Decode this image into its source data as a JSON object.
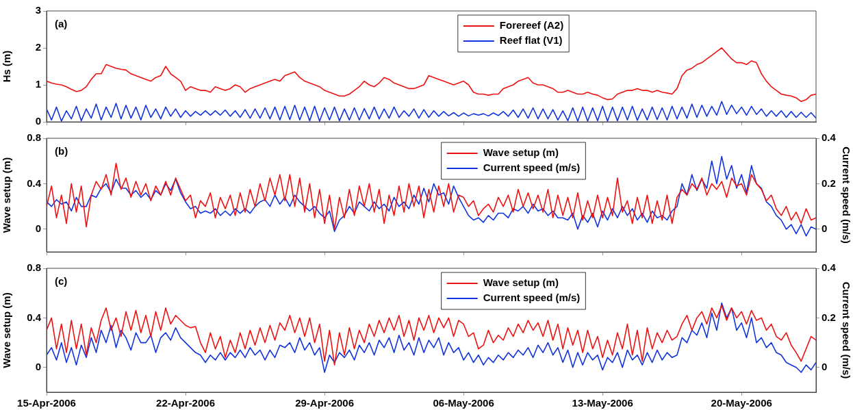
{
  "chart_data": [
    {
      "type": "line",
      "annotations": [
        "(a)"
      ],
      "ylabel": "Hs (m)",
      "legend": "top",
      "tick_labels": "y",
      "xlim": [
        "2006-04-15",
        "2006-05-23T18:00"
      ],
      "ylim": [
        0,
        3
      ],
      "yticks": [
        0,
        1,
        2,
        3
      ],
      "xticks": [
        {
          "value": "2006-04-15",
          "label": null
        },
        {
          "value": "2006-04-22",
          "label": null
        },
        {
          "value": "2006-04-29",
          "label": null
        },
        {
          "value": "2006-05-06",
          "label": null
        },
        {
          "value": "2006-05-13",
          "label": null
        },
        {
          "value": "2006-05-20",
          "label": null
        }
      ],
      "x": [
        "2006-04-15",
        "2006-04-15T06:00",
        "2006-04-15T12:00",
        "2006-04-15T18:00",
        "2006-04-16",
        "2006-04-16T06:00",
        "2006-04-16T12:00",
        "2006-04-16T18:00",
        "2006-04-17",
        "2006-04-17T06:00",
        "2006-04-17T12:00",
        "2006-04-17T18:00",
        "2006-04-18",
        "2006-04-18T06:00",
        "2006-04-18T12:00",
        "2006-04-18T18:00",
        "2006-04-19",
        "2006-04-19T06:00",
        "2006-04-19T12:00",
        "2006-04-19T18:00",
        "2006-04-20",
        "2006-04-20T06:00",
        "2006-04-20T12:00",
        "2006-04-20T18:00",
        "2006-04-21",
        "2006-04-21T06:00",
        "2006-04-21T12:00",
        "2006-04-21T18:00",
        "2006-04-22",
        "2006-04-22T06:00",
        "2006-04-22T12:00",
        "2006-04-22T18:00",
        "2006-04-23",
        "2006-04-23T06:00",
        "2006-04-23T12:00",
        "2006-04-23T18:00",
        "2006-04-24",
        "2006-04-24T06:00",
        "2006-04-24T12:00",
        "2006-04-24T18:00",
        "2006-04-25",
        "2006-04-25T06:00",
        "2006-04-25T12:00",
        "2006-04-25T18:00",
        "2006-04-26",
        "2006-04-26T06:00",
        "2006-04-26T12:00",
        "2006-04-26T18:00",
        "2006-04-27",
        "2006-04-27T06:00",
        "2006-04-27T12:00",
        "2006-04-27T18:00",
        "2006-04-28",
        "2006-04-28T06:00",
        "2006-04-28T12:00",
        "2006-04-28T18:00",
        "2006-04-29",
        "2006-04-29T06:00",
        "2006-04-29T12:00",
        "2006-04-29T18:00",
        "2006-04-30",
        "2006-04-30T06:00",
        "2006-04-30T12:00",
        "2006-04-30T18:00",
        "2006-05-01",
        "2006-05-01T06:00",
        "2006-05-01T12:00",
        "2006-05-01T18:00",
        "2006-05-02",
        "2006-05-02T06:00",
        "2006-05-02T12:00",
        "2006-05-02T18:00",
        "2006-05-03",
        "2006-05-03T06:00",
        "2006-05-03T12:00",
        "2006-05-03T18:00",
        "2006-05-04",
        "2006-05-04T06:00",
        "2006-05-04T12:00",
        "2006-05-04T18:00",
        "2006-05-05",
        "2006-05-05T06:00",
        "2006-05-05T12:00",
        "2006-05-05T18:00",
        "2006-05-06",
        "2006-05-06T06:00",
        "2006-05-06T12:00",
        "2006-05-06T18:00",
        "2006-05-07",
        "2006-05-07T06:00",
        "2006-05-07T12:00",
        "2006-05-07T18:00",
        "2006-05-08",
        "2006-05-08T06:00",
        "2006-05-08T12:00",
        "2006-05-08T18:00",
        "2006-05-09",
        "2006-05-09T06:00",
        "2006-05-09T12:00",
        "2006-05-09T18:00",
        "2006-05-10",
        "2006-05-10T06:00",
        "2006-05-10T12:00",
        "2006-05-10T18:00",
        "2006-05-11",
        "2006-05-11T06:00",
        "2006-05-11T12:00",
        "2006-05-11T18:00",
        "2006-05-12",
        "2006-05-12T06:00",
        "2006-05-12T12:00",
        "2006-05-12T18:00",
        "2006-05-13",
        "2006-05-13T06:00",
        "2006-05-13T12:00",
        "2006-05-13T18:00",
        "2006-05-14",
        "2006-05-14T06:00",
        "2006-05-14T12:00",
        "2006-05-14T18:00",
        "2006-05-15",
        "2006-05-15T06:00",
        "2006-05-15T12:00",
        "2006-05-15T18:00",
        "2006-05-16",
        "2006-05-16T06:00",
        "2006-05-16T12:00",
        "2006-05-16T18:00",
        "2006-05-17",
        "2006-05-17T06:00",
        "2006-05-17T12:00",
        "2006-05-17T18:00",
        "2006-05-18",
        "2006-05-18T06:00",
        "2006-05-18T12:00",
        "2006-05-18T18:00",
        "2006-05-19",
        "2006-05-19T06:00",
        "2006-05-19T12:00",
        "2006-05-19T18:00",
        "2006-05-20",
        "2006-05-20T06:00",
        "2006-05-20T12:00",
        "2006-05-20T18:00",
        "2006-05-21",
        "2006-05-21T06:00",
        "2006-05-21T12:00",
        "2006-05-21T18:00",
        "2006-05-22",
        "2006-05-22T06:00",
        "2006-05-22T12:00",
        "2006-05-22T18:00",
        "2006-05-23",
        "2006-05-23T06:00",
        "2006-05-23T12:00",
        "2006-05-23T18:00"
      ],
      "series": [
        {
          "name": "Forereef (A2)",
          "color": "#ee1111",
          "values": [
            1.1,
            1.05,
            1.02,
            1.0,
            0.95,
            0.88,
            0.82,
            0.85,
            0.95,
            1.15,
            1.3,
            1.3,
            1.55,
            1.5,
            1.45,
            1.42,
            1.4,
            1.3,
            1.25,
            1.2,
            1.15,
            1.1,
            1.2,
            1.25,
            1.5,
            1.3,
            1.2,
            1.1,
            0.85,
            0.95,
            0.9,
            0.85,
            0.85,
            0.8,
            0.95,
            0.9,
            0.85,
            0.9,
            1.0,
            0.95,
            0.8,
            0.9,
            0.95,
            1.0,
            1.05,
            1.1,
            1.15,
            1.1,
            1.25,
            1.3,
            1.35,
            1.2,
            1.1,
            1.05,
            1.0,
            0.95,
            0.85,
            0.8,
            0.75,
            0.7,
            0.7,
            0.75,
            0.85,
            0.95,
            1.1,
            1.0,
            0.95,
            1.05,
            1.2,
            1.15,
            1.05,
            1.0,
            0.95,
            0.9,
            0.9,
            0.95,
            1.0,
            1.25,
            1.2,
            1.15,
            1.1,
            1.05,
            1.0,
            1.05,
            1.1,
            1.0,
            0.8,
            0.75,
            0.75,
            0.72,
            0.75,
            0.75,
            0.9,
            0.95,
            1.0,
            1.1,
            1.15,
            1.2,
            1.05,
            1.0,
            1.0,
            0.95,
            0.9,
            0.8,
            0.8,
            0.85,
            0.8,
            0.75,
            0.75,
            0.8,
            0.75,
            0.72,
            0.65,
            0.6,
            0.62,
            0.75,
            0.8,
            0.85,
            0.85,
            0.9,
            0.85,
            0.85,
            0.8,
            0.85,
            0.8,
            0.78,
            0.75,
            0.9,
            1.25,
            1.4,
            1.45,
            1.55,
            1.6,
            1.7,
            1.8,
            1.9,
            2.0,
            1.85,
            1.7,
            1.6,
            1.6,
            1.55,
            1.65,
            1.6,
            1.3,
            1.1,
            0.95,
            0.85,
            0.75,
            0.72,
            0.7,
            0.65,
            0.55,
            0.6,
            0.72,
            0.75
          ]
        },
        {
          "name": "Reef flat (V1)",
          "color": "#1133dd",
          "values": [
            0.35,
            0.05,
            0.4,
            0.02,
            0.3,
            0.08,
            0.42,
            0.03,
            0.35,
            0.1,
            0.48,
            0.05,
            0.4,
            0.12,
            0.5,
            0.08,
            0.45,
            0.1,
            0.4,
            0.05,
            0.45,
            0.12,
            0.35,
            0.08,
            0.4,
            0.15,
            0.35,
            0.12,
            0.3,
            0.15,
            0.28,
            0.18,
            0.3,
            0.18,
            0.3,
            0.18,
            0.32,
            0.15,
            0.3,
            0.12,
            0.33,
            0.1,
            0.35,
            0.1,
            0.38,
            0.08,
            0.4,
            0.05,
            0.42,
            0.06,
            0.45,
            0.05,
            0.4,
            0.03,
            0.42,
            0.02,
            0.38,
            0.05,
            0.4,
            0.03,
            0.35,
            0.05,
            0.38,
            0.05,
            0.36,
            0.08,
            0.4,
            0.08,
            0.35,
            0.1,
            0.4,
            0.12,
            0.3,
            0.15,
            0.35,
            0.1,
            0.33,
            0.12,
            0.3,
            0.15,
            0.28,
            0.16,
            0.25,
            0.15,
            0.24,
            0.16,
            0.22,
            0.18,
            0.22,
            0.16,
            0.24,
            0.17,
            0.28,
            0.15,
            0.32,
            0.12,
            0.35,
            0.1,
            0.38,
            0.08,
            0.35,
            0.08,
            0.33,
            0.05,
            0.3,
            0.03,
            0.38,
            0.02,
            0.4,
            0.02,
            0.38,
            0.03,
            0.42,
            0.02,
            0.4,
            0.03,
            0.4,
            0.05,
            0.42,
            0.04,
            0.35,
            0.05,
            0.4,
            0.06,
            0.38,
            0.05,
            0.42,
            0.08,
            0.4,
            0.1,
            0.48,
            0.12,
            0.45,
            0.15,
            0.42,
            0.18,
            0.55,
            0.2,
            0.45,
            0.22,
            0.4,
            0.18,
            0.42,
            0.2,
            0.35,
            0.15,
            0.3,
            0.15,
            0.3,
            0.12,
            0.28,
            0.12,
            0.26,
            0.12,
            0.25,
            0.1
          ]
        }
      ]
    },
    {
      "type": "line",
      "annotations": [
        "(b)"
      ],
      "ylabel": "Wave setup (m)",
      "y2label": "Current speed (m/s)",
      "legend": "top",
      "tick_labels": "y",
      "xlim": [
        "2006-04-15",
        "2006-05-23T18:00"
      ],
      "ylim": [
        -0.2,
        0.8
      ],
      "yticks": [
        0,
        0.4,
        0.8
      ],
      "y2lim": [
        -0.1,
        0.4
      ],
      "y2ticks": [
        0,
        0.2,
        0.4
      ],
      "xticks": [
        {
          "value": "2006-04-15",
          "label": null
        },
        {
          "value": "2006-04-22",
          "label": null
        },
        {
          "value": "2006-04-29",
          "label": null
        },
        {
          "value": "2006-05-06",
          "label": null
        },
        {
          "value": "2006-05-13",
          "label": null
        },
        {
          "value": "2006-05-20",
          "label": null
        }
      ],
      "x": [
        "2006-04-15",
        "2006-04-15T06:00",
        "2006-04-15T12:00",
        "2006-04-15T18:00",
        "2006-04-16",
        "2006-04-16T06:00",
        "2006-04-16T12:00",
        "2006-04-16T18:00",
        "2006-04-17",
        "2006-04-17T06:00",
        "2006-04-17T12:00",
        "2006-04-17T18:00",
        "2006-04-18",
        "2006-04-18T06:00",
        "2006-04-18T12:00",
        "2006-04-18T18:00",
        "2006-04-19",
        "2006-04-19T06:00",
        "2006-04-19T12:00",
        "2006-04-19T18:00",
        "2006-04-20",
        "2006-04-20T06:00",
        "2006-04-20T12:00",
        "2006-04-20T18:00",
        "2006-04-21",
        "2006-04-21T06:00",
        "2006-04-21T12:00",
        "2006-04-21T18:00",
        "2006-04-22",
        "2006-04-22T06:00",
        "2006-04-22T12:00",
        "2006-04-22T18:00",
        "2006-04-23",
        "2006-04-23T06:00",
        "2006-04-23T12:00",
        "2006-04-23T18:00",
        "2006-04-24",
        "2006-04-24T06:00",
        "2006-04-24T12:00",
        "2006-04-24T18:00",
        "2006-04-25",
        "2006-04-25T06:00",
        "2006-04-25T12:00",
        "2006-04-25T18:00",
        "2006-04-26",
        "2006-04-26T06:00",
        "2006-04-26T12:00",
        "2006-04-26T18:00",
        "2006-04-27",
        "2006-04-27T06:00",
        "2006-04-27T12:00",
        "2006-04-27T18:00",
        "2006-04-28",
        "2006-04-28T06:00",
        "2006-04-28T12:00",
        "2006-04-28T18:00",
        "2006-04-29",
        "2006-04-29T06:00",
        "2006-04-29T12:00",
        "2006-04-29T18:00",
        "2006-04-30",
        "2006-04-30T06:00",
        "2006-04-30T12:00",
        "2006-04-30T18:00",
        "2006-05-01",
        "2006-05-01T06:00",
        "2006-05-01T12:00",
        "2006-05-01T18:00",
        "2006-05-02",
        "2006-05-02T06:00",
        "2006-05-02T12:00",
        "2006-05-02T18:00",
        "2006-05-03",
        "2006-05-03T06:00",
        "2006-05-03T12:00",
        "2006-05-03T18:00",
        "2006-05-04",
        "2006-05-04T06:00",
        "2006-05-04T12:00",
        "2006-05-04T18:00",
        "2006-05-05",
        "2006-05-05T06:00",
        "2006-05-05T12:00",
        "2006-05-05T18:00",
        "2006-05-06",
        "2006-05-06T06:00",
        "2006-05-06T12:00",
        "2006-05-06T18:00",
        "2006-05-07",
        "2006-05-07T06:00",
        "2006-05-07T12:00",
        "2006-05-07T18:00",
        "2006-05-08",
        "2006-05-08T06:00",
        "2006-05-08T12:00",
        "2006-05-08T18:00",
        "2006-05-09",
        "2006-05-09T06:00",
        "2006-05-09T12:00",
        "2006-05-09T18:00",
        "2006-05-10",
        "2006-05-10T06:00",
        "2006-05-10T12:00",
        "2006-05-10T18:00",
        "2006-05-11",
        "2006-05-11T06:00",
        "2006-05-11T12:00",
        "2006-05-11T18:00",
        "2006-05-12",
        "2006-05-12T06:00",
        "2006-05-12T12:00",
        "2006-05-12T18:00",
        "2006-05-13",
        "2006-05-13T06:00",
        "2006-05-13T12:00",
        "2006-05-13T18:00",
        "2006-05-14",
        "2006-05-14T06:00",
        "2006-05-14T12:00",
        "2006-05-14T18:00",
        "2006-05-15",
        "2006-05-15T06:00",
        "2006-05-15T12:00",
        "2006-05-15T18:00",
        "2006-05-16",
        "2006-05-16T06:00",
        "2006-05-16T12:00",
        "2006-05-16T18:00",
        "2006-05-17",
        "2006-05-17T06:00",
        "2006-05-17T12:00",
        "2006-05-17T18:00",
        "2006-05-18",
        "2006-05-18T06:00",
        "2006-05-18T12:00",
        "2006-05-18T18:00",
        "2006-05-19",
        "2006-05-19T06:00",
        "2006-05-19T12:00",
        "2006-05-19T18:00",
        "2006-05-20",
        "2006-05-20T06:00",
        "2006-05-20T12:00",
        "2006-05-20T18:00",
        "2006-05-21",
        "2006-05-21T06:00",
        "2006-05-21T12:00",
        "2006-05-21T18:00",
        "2006-05-22",
        "2006-05-22T06:00",
        "2006-05-22T12:00",
        "2006-05-22T18:00",
        "2006-05-23",
        "2006-05-23T06:00",
        "2006-05-23T12:00",
        "2006-05-23T18:00"
      ],
      "series": [
        {
          "name": "Wave setup (m)",
          "color": "#ee1111",
          "values": [
            0.2,
            0.38,
            0.1,
            0.3,
            0.05,
            0.4,
            0.15,
            0.38,
            0.02,
            0.3,
            0.42,
            0.35,
            0.48,
            0.3,
            0.58,
            0.35,
            0.45,
            0.28,
            0.42,
            0.3,
            0.4,
            0.25,
            0.38,
            0.3,
            0.42,
            0.3,
            0.45,
            0.35,
            0.25,
            0.3,
            0.1,
            0.25,
            0.2,
            0.32,
            0.1,
            0.28,
            0.18,
            0.3,
            0.12,
            0.32,
            0.15,
            0.35,
            0.2,
            0.4,
            0.25,
            0.45,
            0.3,
            0.48,
            0.25,
            0.48,
            0.2,
            0.45,
            0.15,
            0.4,
            0.1,
            0.35,
            0.05,
            0.3,
            0.0,
            0.28,
            0.1,
            0.35,
            0.12,
            0.38,
            0.2,
            0.4,
            0.15,
            0.35,
            0.05,
            0.3,
            0.12,
            0.38,
            0.15,
            0.4,
            0.2,
            0.38,
            0.1,
            0.35,
            0.15,
            0.38,
            0.2,
            0.4,
            0.15,
            0.3,
            0.28,
            0.2,
            0.25,
            0.12,
            0.18,
            0.22,
            0.15,
            0.28,
            0.2,
            0.3,
            0.15,
            0.35,
            0.2,
            0.32,
            0.18,
            0.3,
            0.15,
            0.35,
            0.1,
            0.3,
            0.12,
            0.28,
            0.1,
            0.32,
            0.08,
            0.25,
            0.1,
            0.3,
            0.1,
            0.28,
            0.12,
            0.45,
            0.15,
            0.25,
            0.05,
            0.28,
            0.1,
            0.3,
            0.05,
            0.25,
            0.08,
            0.3,
            0.05,
            0.28,
            0.35,
            0.3,
            0.4,
            0.35,
            0.45,
            0.3,
            0.4,
            0.35,
            0.42,
            0.28,
            0.45,
            0.38,
            0.4,
            0.3,
            0.48,
            0.4,
            0.35,
            0.25,
            0.3,
            0.18,
            0.12,
            0.2,
            0.08,
            0.15,
            0.05,
            0.18,
            0.08,
            0.1
          ]
        },
        {
          "name": "Current speed (m/s)",
          "color": "#1133dd",
          "axis": "y2",
          "values": [
            0.12,
            0.1,
            0.13,
            0.11,
            0.12,
            0.08,
            0.14,
            0.1,
            0.1,
            0.15,
            0.14,
            0.18,
            0.2,
            0.16,
            0.22,
            0.18,
            0.18,
            0.15,
            0.17,
            0.14,
            0.16,
            0.13,
            0.17,
            0.15,
            0.2,
            0.17,
            0.22,
            0.16,
            0.12,
            0.09,
            0.1,
            0.07,
            0.08,
            0.07,
            0.09,
            0.06,
            0.08,
            0.06,
            0.09,
            0.07,
            0.09,
            0.07,
            0.1,
            0.12,
            0.13,
            0.1,
            0.15,
            0.11,
            0.14,
            0.1,
            0.15,
            0.12,
            0.1,
            0.08,
            0.1,
            0.07,
            0.05,
            0.08,
            -0.01,
            0.04,
            0.06,
            0.1,
            0.07,
            0.12,
            0.1,
            0.08,
            0.12,
            0.09,
            0.11,
            0.08,
            0.14,
            0.1,
            0.12,
            0.09,
            0.15,
            0.11,
            0.18,
            0.12,
            0.2,
            0.15,
            0.16,
            0.11,
            0.19,
            0.14,
            0.1,
            0.06,
            0.04,
            0.05,
            0.03,
            0.06,
            0.04,
            0.07,
            0.07,
            0.05,
            0.09,
            0.08,
            0.1,
            0.07,
            0.11,
            0.08,
            0.09,
            0.06,
            0.08,
            0.05,
            0.05,
            0.04,
            0.07,
            0.0,
            0.06,
            0.03,
            0.07,
            0.01,
            0.08,
            0.04,
            0.09,
            0.05,
            0.1,
            0.06,
            0.09,
            0.04,
            0.07,
            0.03,
            0.08,
            0.05,
            0.06,
            0.04,
            0.08,
            0.1,
            0.2,
            0.15,
            0.24,
            0.17,
            0.22,
            0.18,
            0.3,
            0.2,
            0.32,
            0.22,
            0.28,
            0.18,
            0.24,
            0.16,
            0.28,
            0.2,
            0.18,
            0.12,
            0.1,
            0.06,
            0.04,
            0.0,
            0.02,
            -0.02,
            0.02,
            -0.03,
            0.01,
            0.0
          ]
        }
      ]
    },
    {
      "type": "line",
      "annotations": [
        "(c)"
      ],
      "ylabel": "Wave setup (m)",
      "y2label": "Current speed (m/s)",
      "legend": "top",
      "xlim": [
        "2006-04-15",
        "2006-05-23T18:00"
      ],
      "ylim": [
        -0.2,
        0.8
      ],
      "yticks": [
        0,
        0.4,
        0.8
      ],
      "y2lim": [
        -0.1,
        0.4
      ],
      "y2ticks": [
        0,
        0.2,
        0.4
      ],
      "xticks": [
        {
          "value": "2006-04-15",
          "label": "15-Apr-2006"
        },
        {
          "value": "2006-04-22",
          "label": "22-Apr-2006"
        },
        {
          "value": "2006-04-29",
          "label": "29-Apr-2006"
        },
        {
          "value": "2006-05-06",
          "label": "06-May-2006"
        },
        {
          "value": "2006-05-13",
          "label": "13-May-2006"
        },
        {
          "value": "2006-05-20",
          "label": "20-May-2006"
        }
      ],
      "x": [
        "2006-04-15",
        "2006-04-15T06:00",
        "2006-04-15T12:00",
        "2006-04-15T18:00",
        "2006-04-16",
        "2006-04-16T06:00",
        "2006-04-16T12:00",
        "2006-04-16T18:00",
        "2006-04-17",
        "2006-04-17T06:00",
        "2006-04-17T12:00",
        "2006-04-17T18:00",
        "2006-04-18",
        "2006-04-18T06:00",
        "2006-04-18T12:00",
        "2006-04-18T18:00",
        "2006-04-19",
        "2006-04-19T06:00",
        "2006-04-19T12:00",
        "2006-04-19T18:00",
        "2006-04-20",
        "2006-04-20T06:00",
        "2006-04-20T12:00",
        "2006-04-20T18:00",
        "2006-04-21",
        "2006-04-21T06:00",
        "2006-04-21T12:00",
        "2006-04-21T18:00",
        "2006-04-22",
        "2006-04-22T06:00",
        "2006-04-22T12:00",
        "2006-04-22T18:00",
        "2006-04-23",
        "2006-04-23T06:00",
        "2006-04-23T12:00",
        "2006-04-23T18:00",
        "2006-04-24",
        "2006-04-24T06:00",
        "2006-04-24T12:00",
        "2006-04-24T18:00",
        "2006-04-25",
        "2006-04-25T06:00",
        "2006-04-25T12:00",
        "2006-04-25T18:00",
        "2006-04-26",
        "2006-04-26T06:00",
        "2006-04-26T12:00",
        "2006-04-26T18:00",
        "2006-04-27",
        "2006-04-27T06:00",
        "2006-04-27T12:00",
        "2006-04-27T18:00",
        "2006-04-28",
        "2006-04-28T06:00",
        "2006-04-28T12:00",
        "2006-04-28T18:00",
        "2006-04-29",
        "2006-04-29T06:00",
        "2006-04-29T12:00",
        "2006-04-29T18:00",
        "2006-04-30",
        "2006-04-30T06:00",
        "2006-04-30T12:00",
        "2006-04-30T18:00",
        "2006-05-01",
        "2006-05-01T06:00",
        "2006-05-01T12:00",
        "2006-05-01T18:00",
        "2006-05-02",
        "2006-05-02T06:00",
        "2006-05-02T12:00",
        "2006-05-02T18:00",
        "2006-05-03",
        "2006-05-03T06:00",
        "2006-05-03T12:00",
        "2006-05-03T18:00",
        "2006-05-04",
        "2006-05-04T06:00",
        "2006-05-04T12:00",
        "2006-05-04T18:00",
        "2006-05-05",
        "2006-05-05T06:00",
        "2006-05-05T12:00",
        "2006-05-05T18:00",
        "2006-05-06",
        "2006-05-06T06:00",
        "2006-05-06T12:00",
        "2006-05-06T18:00",
        "2006-05-07",
        "2006-05-07T06:00",
        "2006-05-07T12:00",
        "2006-05-07T18:00",
        "2006-05-08",
        "2006-05-08T06:00",
        "2006-05-08T12:00",
        "2006-05-08T18:00",
        "2006-05-09",
        "2006-05-09T06:00",
        "2006-05-09T12:00",
        "2006-05-09T18:00",
        "2006-05-10",
        "2006-05-10T06:00",
        "2006-05-10T12:00",
        "2006-05-10T18:00",
        "2006-05-11",
        "2006-05-11T06:00",
        "2006-05-11T12:00",
        "2006-05-11T18:00",
        "2006-05-12",
        "2006-05-12T06:00",
        "2006-05-12T12:00",
        "2006-05-12T18:00",
        "2006-05-13",
        "2006-05-13T06:00",
        "2006-05-13T12:00",
        "2006-05-13T18:00",
        "2006-05-14",
        "2006-05-14T06:00",
        "2006-05-14T12:00",
        "2006-05-14T18:00",
        "2006-05-15",
        "2006-05-15T06:00",
        "2006-05-15T12:00",
        "2006-05-15T18:00",
        "2006-05-16",
        "2006-05-16T06:00",
        "2006-05-16T12:00",
        "2006-05-16T18:00",
        "2006-05-17",
        "2006-05-17T06:00",
        "2006-05-17T12:00",
        "2006-05-17T18:00",
        "2006-05-18",
        "2006-05-18T06:00",
        "2006-05-18T12:00",
        "2006-05-18T18:00",
        "2006-05-19",
        "2006-05-19T06:00",
        "2006-05-19T12:00",
        "2006-05-19T18:00",
        "2006-05-20",
        "2006-05-20T06:00",
        "2006-05-20T12:00",
        "2006-05-20T18:00",
        "2006-05-21",
        "2006-05-21T06:00",
        "2006-05-21T12:00",
        "2006-05-21T18:00",
        "2006-05-22",
        "2006-05-22T06:00",
        "2006-05-22T12:00",
        "2006-05-22T18:00",
        "2006-05-23",
        "2006-05-23T06:00",
        "2006-05-23T12:00",
        "2006-05-23T18:00"
      ],
      "series": [
        {
          "name": "Wave setup (m)",
          "color": "#ee1111",
          "values": [
            0.3,
            0.4,
            0.15,
            0.35,
            0.12,
            0.38,
            0.15,
            0.35,
            0.1,
            0.32,
            0.2,
            0.38,
            0.48,
            0.3,
            0.4,
            0.25,
            0.45,
            0.3,
            0.46,
            0.28,
            0.42,
            0.25,
            0.45,
            0.3,
            0.48,
            0.35,
            0.42,
            0.38,
            0.34,
            0.32,
            0.33,
            0.2,
            0.12,
            0.28,
            0.15,
            0.25,
            0.08,
            0.22,
            0.12,
            0.28,
            0.15,
            0.3,
            0.18,
            0.32,
            0.2,
            0.34,
            0.22,
            0.36,
            0.3,
            0.42,
            0.28,
            0.4,
            0.25,
            0.4,
            0.2,
            0.35,
            0.05,
            0.3,
            0.02,
            0.28,
            0.1,
            0.32,
            0.15,
            0.3,
            0.2,
            0.35,
            0.25,
            0.38,
            0.28,
            0.4,
            0.3,
            0.42,
            0.25,
            0.38,
            0.22,
            0.4,
            0.3,
            0.42,
            0.28,
            0.4,
            0.32,
            0.4,
            0.25,
            0.38,
            0.35,
            0.25,
            0.28,
            0.15,
            0.18,
            0.3,
            0.2,
            0.26,
            0.22,
            0.32,
            0.25,
            0.35,
            0.28,
            0.38,
            0.3,
            0.36,
            0.25,
            0.38,
            0.22,
            0.35,
            0.15,
            0.32,
            0.18,
            0.3,
            0.12,
            0.3,
            0.15,
            0.25,
            0.08,
            0.22,
            0.1,
            0.28,
            0.15,
            0.35,
            0.1,
            0.3,
            0.05,
            0.32,
            0.15,
            0.28,
            0.2,
            0.3,
            0.22,
            0.25,
            0.35,
            0.42,
            0.3,
            0.4,
            0.45,
            0.35,
            0.48,
            0.4,
            0.5,
            0.38,
            0.48,
            0.4,
            0.45,
            0.35,
            0.46,
            0.38,
            0.4,
            0.3,
            0.35,
            0.25,
            0.22,
            0.28,
            0.18,
            0.12,
            0.05,
            0.15,
            0.25,
            0.22
          ]
        },
        {
          "name": "Current speed (m/s)",
          "color": "#1133dd",
          "axis": "y2",
          "values": [
            0.05,
            0.08,
            0.03,
            0.1,
            0.02,
            0.08,
            0.01,
            0.09,
            0.04,
            0.12,
            0.06,
            0.15,
            0.1,
            0.17,
            0.08,
            0.15,
            0.12,
            0.07,
            0.14,
            0.1,
            0.1,
            0.13,
            0.06,
            0.12,
            0.14,
            0.11,
            0.16,
            0.12,
            0.1,
            0.08,
            0.06,
            0.05,
            0.02,
            0.05,
            0.03,
            0.06,
            0.03,
            0.06,
            0.04,
            0.07,
            0.04,
            0.08,
            0.05,
            0.07,
            0.03,
            0.07,
            0.04,
            0.09,
            0.08,
            0.1,
            0.06,
            0.12,
            0.07,
            0.1,
            0.05,
            0.08,
            -0.02,
            0.05,
            0.02,
            0.06,
            0.04,
            0.07,
            0.03,
            0.09,
            0.06,
            0.1,
            0.05,
            0.11,
            0.08,
            0.12,
            0.06,
            0.13,
            0.07,
            0.1,
            0.05,
            0.12,
            0.06,
            0.11,
            0.08,
            0.12,
            0.05,
            0.1,
            0.06,
            0.08,
            0.03,
            0.06,
            0.02,
            0.05,
            0.01,
            0.04,
            0.02,
            0.05,
            0.03,
            0.06,
            0.04,
            0.07,
            0.05,
            0.08,
            0.04,
            0.09,
            0.06,
            0.1,
            0.05,
            0.08,
            0.02,
            0.07,
            0.0,
            0.06,
            0.01,
            0.06,
            0.03,
            0.05,
            -0.01,
            0.04,
            0.02,
            0.06,
            0.0,
            0.07,
            0.03,
            0.05,
            0.01,
            0.06,
            0.02,
            0.07,
            0.03,
            0.06,
            0.04,
            0.05,
            0.12,
            0.1,
            0.15,
            0.13,
            0.18,
            0.12,
            0.22,
            0.15,
            0.26,
            0.2,
            0.24,
            0.15,
            0.18,
            0.12,
            0.2,
            0.1,
            0.12,
            0.08,
            0.1,
            0.06,
            0.05,
            0.02,
            0.01,
            0.0,
            -0.02,
            0.01,
            -0.01,
            0.02
          ]
        }
      ]
    }
  ]
}
